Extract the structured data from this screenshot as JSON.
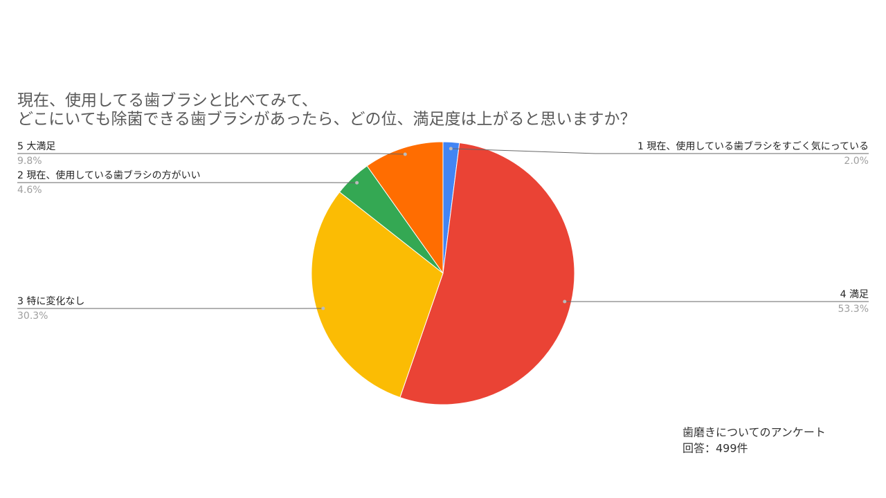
{
  "chart_data": {
    "type": "pie",
    "title": [
      "現在、使用してる歯ブラシと比べてみて、",
      "どこにいても除菌できる歯ブラシがあったら、どの位、満足度は上がると思いますか？"
    ],
    "categories": [
      "1 現在、使用している歯ブラシをすごく気にっている",
      "4 満足",
      "3 特に変化なし",
      "2 現在、使用している歯ブラシの方がいい",
      "5 大満足"
    ],
    "values": [
      2.0,
      53.3,
      30.3,
      4.6,
      9.8
    ],
    "value_labels": [
      "2.0%",
      "53.3%",
      "30.3%",
      "4.6%",
      "9.8%"
    ],
    "colors": [
      "#4285f4",
      "#ea4335",
      "#fbbc04",
      "#34a853",
      "#ff6d01"
    ],
    "notes": [
      "歯磨きについてのアンケート",
      "回答：499件"
    ]
  }
}
